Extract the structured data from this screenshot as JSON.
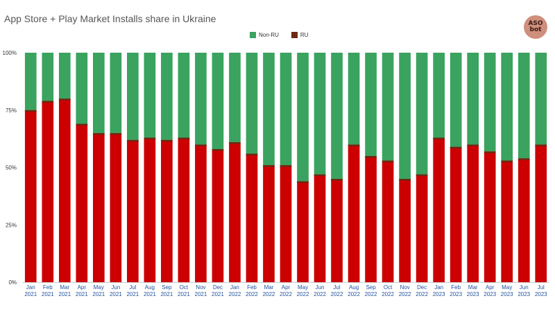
{
  "chart_data": {
    "type": "bar",
    "stacked": true,
    "percent": true,
    "title": "App Store + Play Market Installs share in Ukraine",
    "categories": [
      [
        "Jan",
        "2021"
      ],
      [
        "Feb",
        "2021"
      ],
      [
        "Mar",
        "2021"
      ],
      [
        "Apr",
        "2021"
      ],
      [
        "May",
        "2021"
      ],
      [
        "Jun",
        "2021"
      ],
      [
        "Jul",
        "2021"
      ],
      [
        "Aug",
        "2021"
      ],
      [
        "Sep",
        "2021"
      ],
      [
        "Oct",
        "2021"
      ],
      [
        "Nov",
        "2021"
      ],
      [
        "Dec",
        "2021"
      ],
      [
        "Jan",
        "2022"
      ],
      [
        "Feb",
        "2022"
      ],
      [
        "Mar",
        "2022"
      ],
      [
        "Apr",
        "2022"
      ],
      [
        "May",
        "2022"
      ],
      [
        "Jun",
        "2022"
      ],
      [
        "Jul",
        "2022"
      ],
      [
        "Aug",
        "2022"
      ],
      [
        "Sep",
        "2022"
      ],
      [
        "Oct",
        "2022"
      ],
      [
        "Nov",
        "2022"
      ],
      [
        "Dec",
        "2022"
      ],
      [
        "Jan",
        "2023"
      ],
      [
        "Feb",
        "2023"
      ],
      [
        "Mar",
        "2023"
      ],
      [
        "Apr",
        "2023"
      ],
      [
        "May",
        "2023"
      ],
      [
        "Jun",
        "2023"
      ],
      [
        "Jul",
        "2023"
      ]
    ],
    "series": [
      {
        "name": "RU",
        "color": "#cc0000",
        "values": [
          75,
          79,
          80,
          69,
          65,
          65,
          62,
          63,
          62,
          63,
          60,
          58,
          61,
          56,
          51,
          51,
          44,
          47,
          45,
          60,
          55,
          53,
          45,
          47,
          63,
          59,
          60,
          57,
          53,
          54,
          60
        ]
      },
      {
        "name": "Non-RU",
        "color": "#3aa35f",
        "values": [
          25,
          21,
          20,
          31,
          35,
          35,
          38,
          37,
          38,
          37,
          40,
          42,
          39,
          44,
          49,
          49,
          56,
          53,
          55,
          40,
          45,
          47,
          55,
          53,
          37,
          41,
          40,
          43,
          47,
          46,
          40
        ]
      }
    ],
    "legend": [
      {
        "name": "Non-RU",
        "color": "#3aa35f"
      },
      {
        "name": "RU",
        "color": "#6b2a12"
      }
    ],
    "yticks": [
      "0%",
      "25%",
      "50%",
      "75%",
      "100%"
    ],
    "ylim": [
      0,
      100
    ],
    "legend_position": "top-center",
    "grid": false
  },
  "logo": {
    "line1": "ASO",
    "line2": "bot",
    "color": "#cf8f7d"
  }
}
